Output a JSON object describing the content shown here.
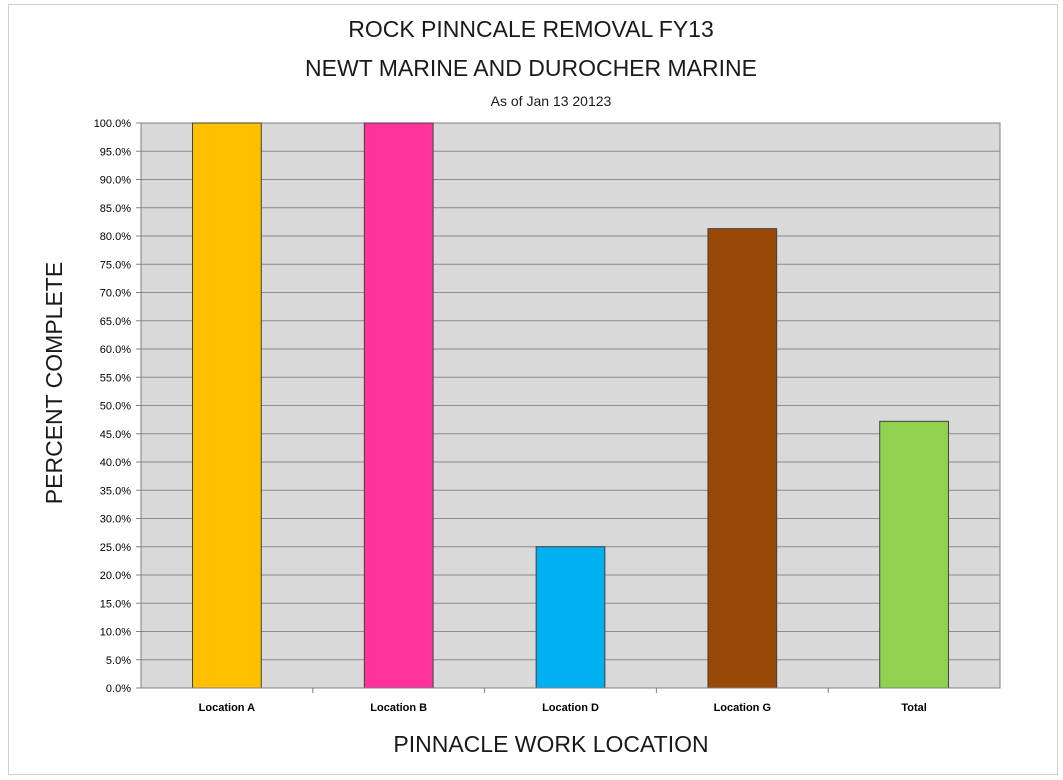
{
  "chart_data": {
    "type": "bar",
    "title": "ROCK PINNCALE REMOVAL FY13",
    "subtitle": "NEWT MARINE AND DUROCHER MARINE",
    "note": "As of Jan 13 20123",
    "xlabel": "PINNACLE WORK LOCATION",
    "ylabel": "PERCENT COMPLETE",
    "categories": [
      "Location A",
      "Location B",
      "Location D",
      "Location G",
      "Total"
    ],
    "values": [
      100.0,
      100.0,
      25.0,
      81.3,
      47.2
    ],
    "colors": [
      "#ffc000",
      "#ff3399",
      "#00b0f0",
      "#984807",
      "#92d050"
    ],
    "ylim": [
      0,
      100
    ],
    "yticks": [
      0,
      5,
      10,
      15,
      20,
      25,
      30,
      35,
      40,
      45,
      50,
      55,
      60,
      65,
      70,
      75,
      80,
      85,
      90,
      95,
      100
    ],
    "ytick_format": "0.0%",
    "grid": true,
    "plot_background": "#d9d9d9",
    "legend": "none"
  }
}
